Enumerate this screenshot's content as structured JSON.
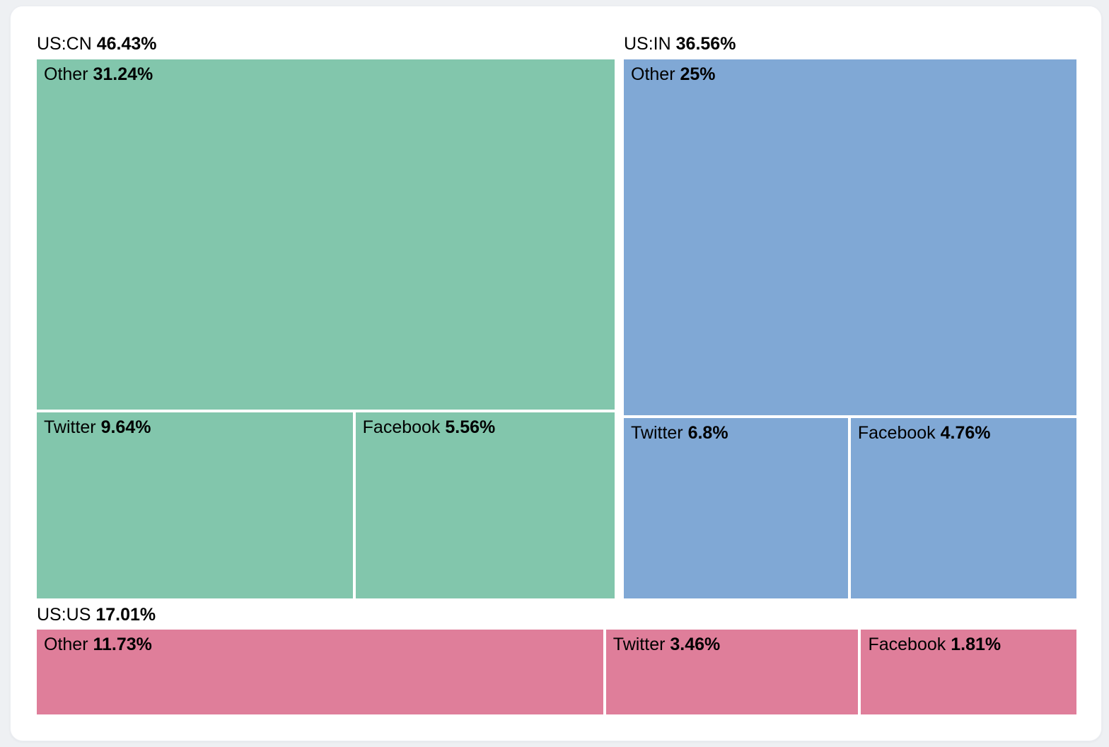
{
  "page": {
    "background_color": "#eef0f3",
    "card_color": "#ffffff"
  },
  "chart_data": {
    "type": "treemap",
    "unit": "%",
    "legend_position": "none",
    "text_color": "#000000",
    "groups": [
      {
        "label": "US:CN",
        "pct_label": "46.43%",
        "value": 46.43,
        "color": "#82c6ac",
        "children": [
          {
            "name": "Other",
            "pct_label": "31.24%",
            "value": 31.24
          },
          {
            "name": "Twitter",
            "pct_label": "9.64%",
            "value": 9.64
          },
          {
            "name": "Facebook",
            "pct_label": "5.56%",
            "value": 5.56
          }
        ]
      },
      {
        "label": "US:IN",
        "pct_label": "36.56%",
        "value": 36.56,
        "color": "#80a8d5",
        "children": [
          {
            "name": "Other",
            "pct_label": "25%",
            "value": 25
          },
          {
            "name": "Twitter",
            "pct_label": "6.8%",
            "value": 6.8
          },
          {
            "name": "Facebook",
            "pct_label": "4.76%",
            "value": 4.76
          }
        ]
      },
      {
        "label": "US:US",
        "pct_label": "17.01%",
        "value": 17.01,
        "color": "#df7e9a",
        "children": [
          {
            "name": "Other",
            "pct_label": "11.73%",
            "value": 11.73
          },
          {
            "name": "Twitter",
            "pct_label": "3.46%",
            "value": 3.46
          },
          {
            "name": "Facebook",
            "pct_label": "1.81%",
            "value": 1.81
          }
        ]
      }
    ]
  }
}
